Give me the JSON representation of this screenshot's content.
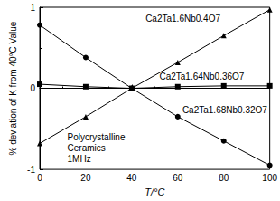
{
  "chart_data": {
    "type": "line",
    "x_label": "T/°C",
    "y_label": "% deviation of K from 40°C Value",
    "x": [
      0,
      20,
      40,
      60,
      80,
      100
    ],
    "series": [
      {
        "name": "Ca2Ta1.6Nb0.4O7",
        "color": "#000000",
        "marker": "triangle",
        "values": [
          -0.68,
          -0.35,
          0,
          0.32,
          0.65,
          0.97
        ]
      },
      {
        "name": "Ca2Ta1.64Nb0.36O7",
        "color": "#000000",
        "marker": "square",
        "values": [
          0.05,
          0.02,
          0,
          0.02,
          0.03,
          0.03
        ]
      },
      {
        "name": "Ca2Ta1.68Nb0.32O7",
        "color": "#000000",
        "marker": "circle",
        "values": [
          0.78,
          0.38,
          0,
          -0.35,
          -0.65,
          -0.95
        ]
      }
    ],
    "annotations": [
      "Polycrystalline",
      "Ceramics",
      "1MHz"
    ],
    "xlim": [
      0,
      100
    ],
    "xticks": [
      0,
      20,
      40,
      60,
      80,
      100
    ],
    "ylim": [
      -1,
      1
    ],
    "yticks": [
      -1,
      0,
      1
    ],
    "grid": false
  }
}
